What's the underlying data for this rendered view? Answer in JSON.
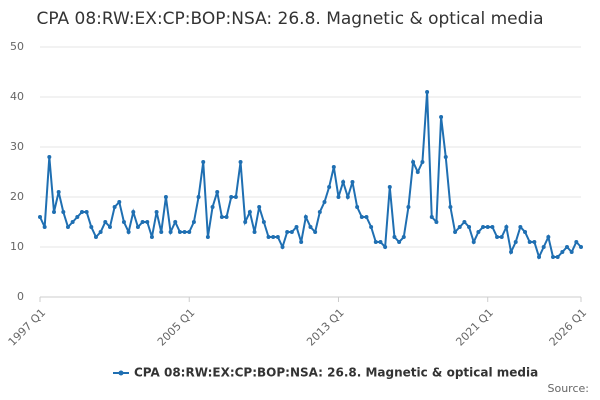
{
  "chart_data": {
    "type": "line",
    "title": "CPA 08:RW:EX:CP:BOP:NSA: 26.8. Magnetic & optical media",
    "source": "Source:",
    "categories": [
      "1997 Q1",
      null,
      null,
      null,
      null,
      null,
      null,
      null,
      null,
      null,
      null,
      null,
      null,
      null,
      null,
      null,
      null,
      null,
      null,
      null,
      null,
      null,
      null,
      null,
      null,
      null,
      null,
      null,
      null,
      null,
      null,
      null,
      "2005 Q1",
      null,
      null,
      null,
      null,
      null,
      null,
      null,
      null,
      null,
      null,
      null,
      null,
      null,
      null,
      null,
      null,
      null,
      null,
      null,
      null,
      null,
      null,
      null,
      null,
      null,
      null,
      null,
      null,
      null,
      null,
      null,
      "2013 Q1",
      null,
      null,
      null,
      null,
      null,
      null,
      null,
      null,
      null,
      null,
      null,
      null,
      null,
      null,
      null,
      null,
      null,
      null,
      null,
      null,
      null,
      null,
      null,
      null,
      null,
      null,
      null,
      null,
      null,
      null,
      null,
      "2021 Q1",
      null,
      null,
      null,
      null,
      null,
      null,
      null,
      null,
      null,
      null,
      null,
      null,
      null,
      null,
      null,
      null,
      null,
      null,
      null,
      "2026 Q1"
    ],
    "series": [
      {
        "name": "CPA 08:RW:EX:CP:BOP:NSA: 26.8. Magnetic & optical media",
        "color": "#1f6fb2",
        "values": [
          16,
          14,
          28,
          17,
          21,
          17,
          14,
          15,
          16,
          17,
          17,
          14,
          12,
          13,
          15,
          14,
          18,
          19,
          15,
          13,
          17,
          14,
          15,
          15,
          12,
          17,
          13,
          20,
          13,
          15,
          13,
          13,
          13,
          15,
          20,
          27,
          12,
          18,
          21,
          16,
          16,
          20,
          20,
          27,
          15,
          17,
          13,
          18,
          15,
          12,
          12,
          12,
          10,
          13,
          13,
          14,
          11,
          16,
          14,
          13,
          17,
          19,
          22,
          26,
          20,
          23,
          20,
          23,
          18,
          16,
          16,
          14,
          11,
          11,
          10,
          22,
          12,
          11,
          12,
          18,
          27,
          25,
          27,
          41,
          16,
          15,
          36,
          28,
          18,
          13,
          14,
          15,
          14,
          11,
          13,
          14,
          14,
          14,
          12,
          12,
          14,
          9,
          11,
          14,
          13,
          11,
          11,
          8,
          10,
          12,
          8,
          8,
          9,
          10,
          9,
          11,
          10
        ]
      }
    ],
    "ylim": [
      0,
      50
    ],
    "yticks": [
      0,
      10,
      20,
      30,
      40,
      50
    ],
    "grid": true,
    "legend": "bottom"
  }
}
